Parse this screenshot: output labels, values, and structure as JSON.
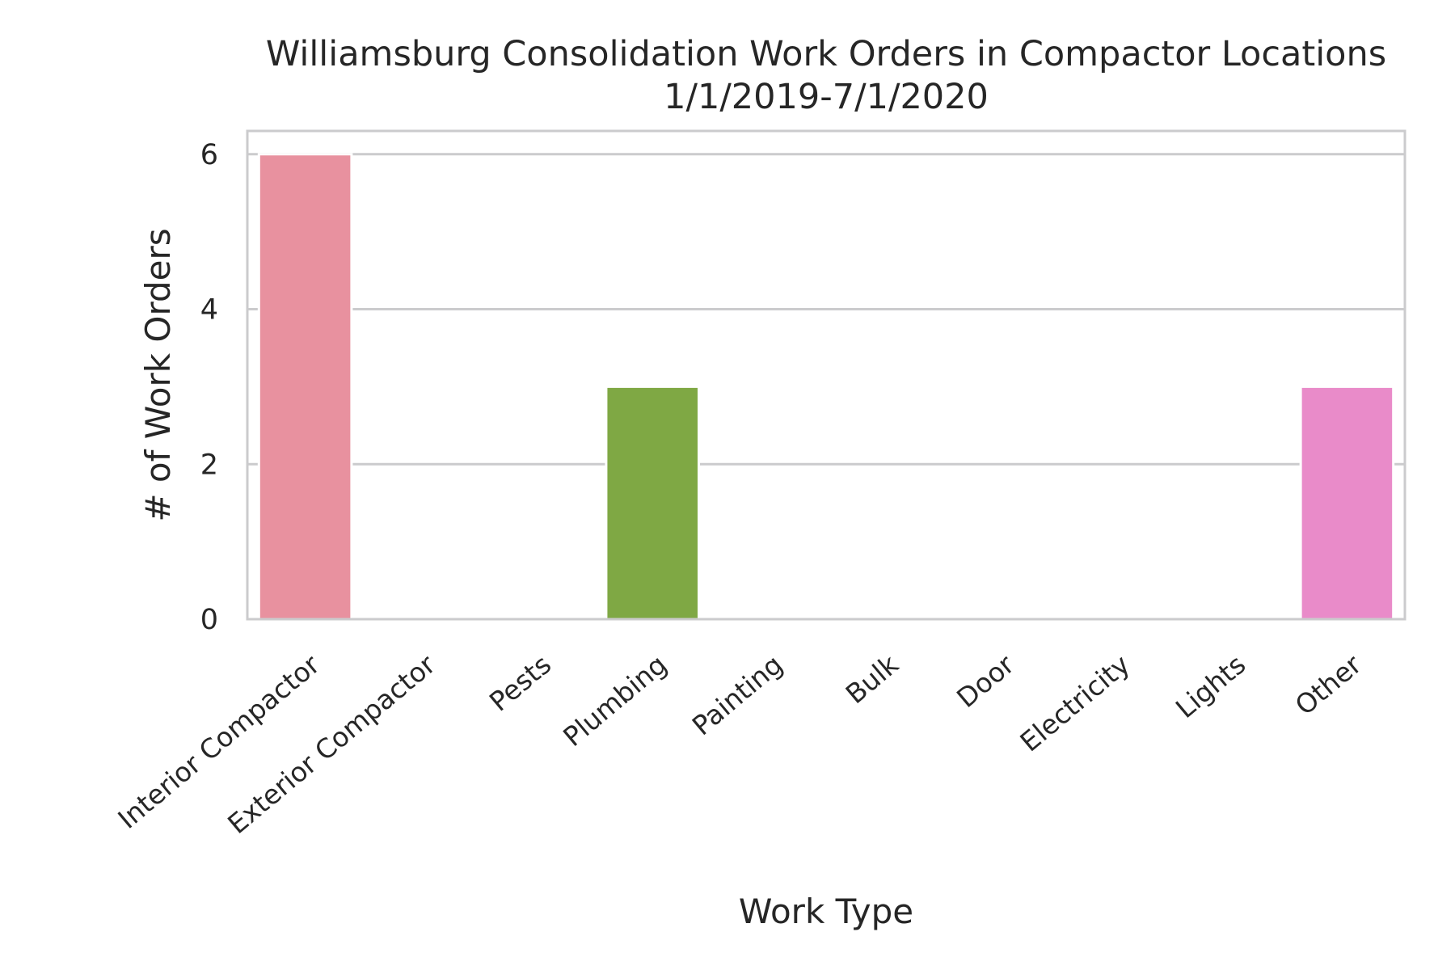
{
  "chart_data": {
    "type": "bar",
    "title": "Williamsburg Consolidation Work Orders in Compactor Locations",
    "subtitle": "1/1/2019-7/1/2020",
    "xlabel": "Work Type",
    "ylabel": "# of Work Orders",
    "categories": [
      "Interior Compactor",
      "Exterior Compactor",
      "Pests",
      "Plumbing",
      "Painting",
      "Bulk",
      "Door",
      "Electricity",
      "Lights",
      "Other"
    ],
    "values": [
      6,
      0,
      0,
      3,
      0,
      0,
      0,
      0,
      0,
      3
    ],
    "colors": [
      "#e8919f",
      "#e0943f",
      "#c7a43c",
      "#7fa844",
      "#4daf74",
      "#4cab98",
      "#4da9b6",
      "#5c9fdb",
      "#b08be3",
      "#e98bc9"
    ],
    "ylim": [
      0,
      6.3
    ],
    "yticks": [
      0,
      2,
      4,
      6
    ],
    "grid": true,
    "legend": "none"
  }
}
